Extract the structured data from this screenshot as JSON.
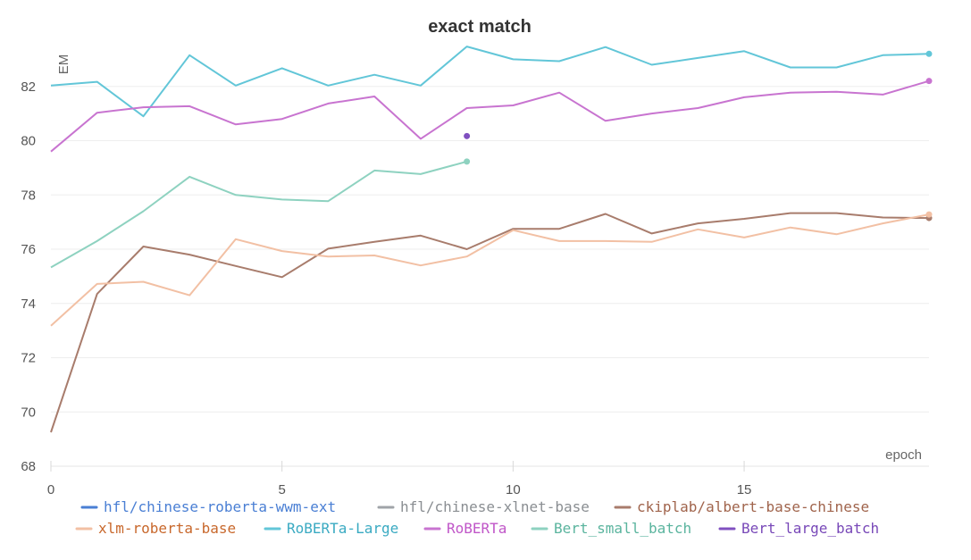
{
  "chart_data": {
    "type": "line",
    "title": "exact match",
    "xlabel": "epoch",
    "ylabel": "EM",
    "xlim": [
      0,
      19
    ],
    "ylim": [
      68,
      84
    ],
    "xticks": [
      0,
      5,
      10,
      15
    ],
    "yticks": [
      68,
      70,
      72,
      74,
      76,
      78,
      80,
      82
    ],
    "grid": true,
    "legend_position": "bottom",
    "series": [
      {
        "name": "hfl/chinese-roberta-wwm-ext",
        "color": "#4a7fd4",
        "text_color": "#4a7fd4",
        "x": [],
        "y": []
      },
      {
        "name": "hfl/chinese-xlnet-base",
        "color": "#a0a4a8",
        "text_color": "#8a8e92",
        "x": [],
        "y": []
      },
      {
        "name": "ckiplab/albert-base-chinese",
        "color": "#a87c6c",
        "text_color": "#a0644c",
        "x": [
          0,
          1,
          2,
          3,
          4,
          5,
          6,
          7,
          8,
          9,
          10,
          11,
          12,
          13,
          14,
          15,
          16,
          17,
          18,
          19
        ],
        "y": [
          69.25,
          74.35,
          76.1,
          75.8,
          75.38,
          74.97,
          76.02,
          76.27,
          76.5,
          76.0,
          76.75,
          76.75,
          77.3,
          76.58,
          76.95,
          77.12,
          77.33,
          77.33,
          77.17,
          77.15
        ]
      },
      {
        "name": "xlm-roberta-base",
        "color": "#f2c0a4",
        "text_color": "#c8682c",
        "x": [
          0,
          1,
          2,
          3,
          4,
          5,
          6,
          7,
          8,
          9,
          10,
          11,
          12,
          13,
          14,
          15,
          16,
          17,
          18,
          19
        ],
        "y": [
          73.18,
          74.72,
          74.8,
          74.3,
          76.37,
          75.93,
          75.73,
          75.77,
          75.4,
          75.73,
          76.7,
          76.3,
          76.3,
          76.27,
          76.73,
          76.43,
          76.8,
          76.55,
          76.95,
          77.28
        ]
      },
      {
        "name": "RoBERTa-Large",
        "color": "#62c6d8",
        "text_color": "#3aaac2",
        "x": [
          0,
          1,
          2,
          3,
          4,
          5,
          6,
          7,
          8,
          9,
          10,
          11,
          12,
          13,
          14,
          15,
          16,
          17,
          18,
          19
        ],
        "y": [
          82.03,
          82.17,
          80.9,
          83.15,
          82.03,
          82.67,
          82.03,
          82.43,
          82.03,
          83.47,
          83.0,
          82.93,
          83.45,
          82.8,
          83.05,
          83.3,
          82.7,
          82.7,
          83.15,
          83.2
        ]
      },
      {
        "name": "RoBERTa",
        "color": "#c874d0",
        "text_color": "#c056c8",
        "x": [
          0,
          1,
          2,
          3,
          4,
          5,
          6,
          7,
          8,
          9,
          10,
          11,
          12,
          13,
          14,
          15,
          16,
          17,
          18,
          19
        ],
        "y": [
          79.6,
          81.03,
          81.23,
          81.27,
          80.6,
          80.8,
          81.37,
          81.63,
          80.07,
          81.2,
          81.3,
          81.77,
          80.73,
          81.0,
          81.2,
          81.6,
          81.77,
          81.8,
          81.7,
          82.2
        ]
      },
      {
        "name": "Bert_small_batch",
        "color": "#8ed2c0",
        "text_color": "#5ab49e",
        "x": [
          0,
          1,
          2,
          3,
          4,
          5,
          6,
          7,
          8,
          9
        ],
        "y": [
          75.33,
          76.3,
          77.4,
          78.67,
          78.0,
          77.83,
          77.77,
          78.9,
          78.77,
          79.23
        ]
      },
      {
        "name": "Bert_large_batch",
        "color": "#8050c0",
        "text_color": "#7848b8",
        "x": [
          9
        ],
        "y": [
          80.17
        ]
      }
    ]
  }
}
